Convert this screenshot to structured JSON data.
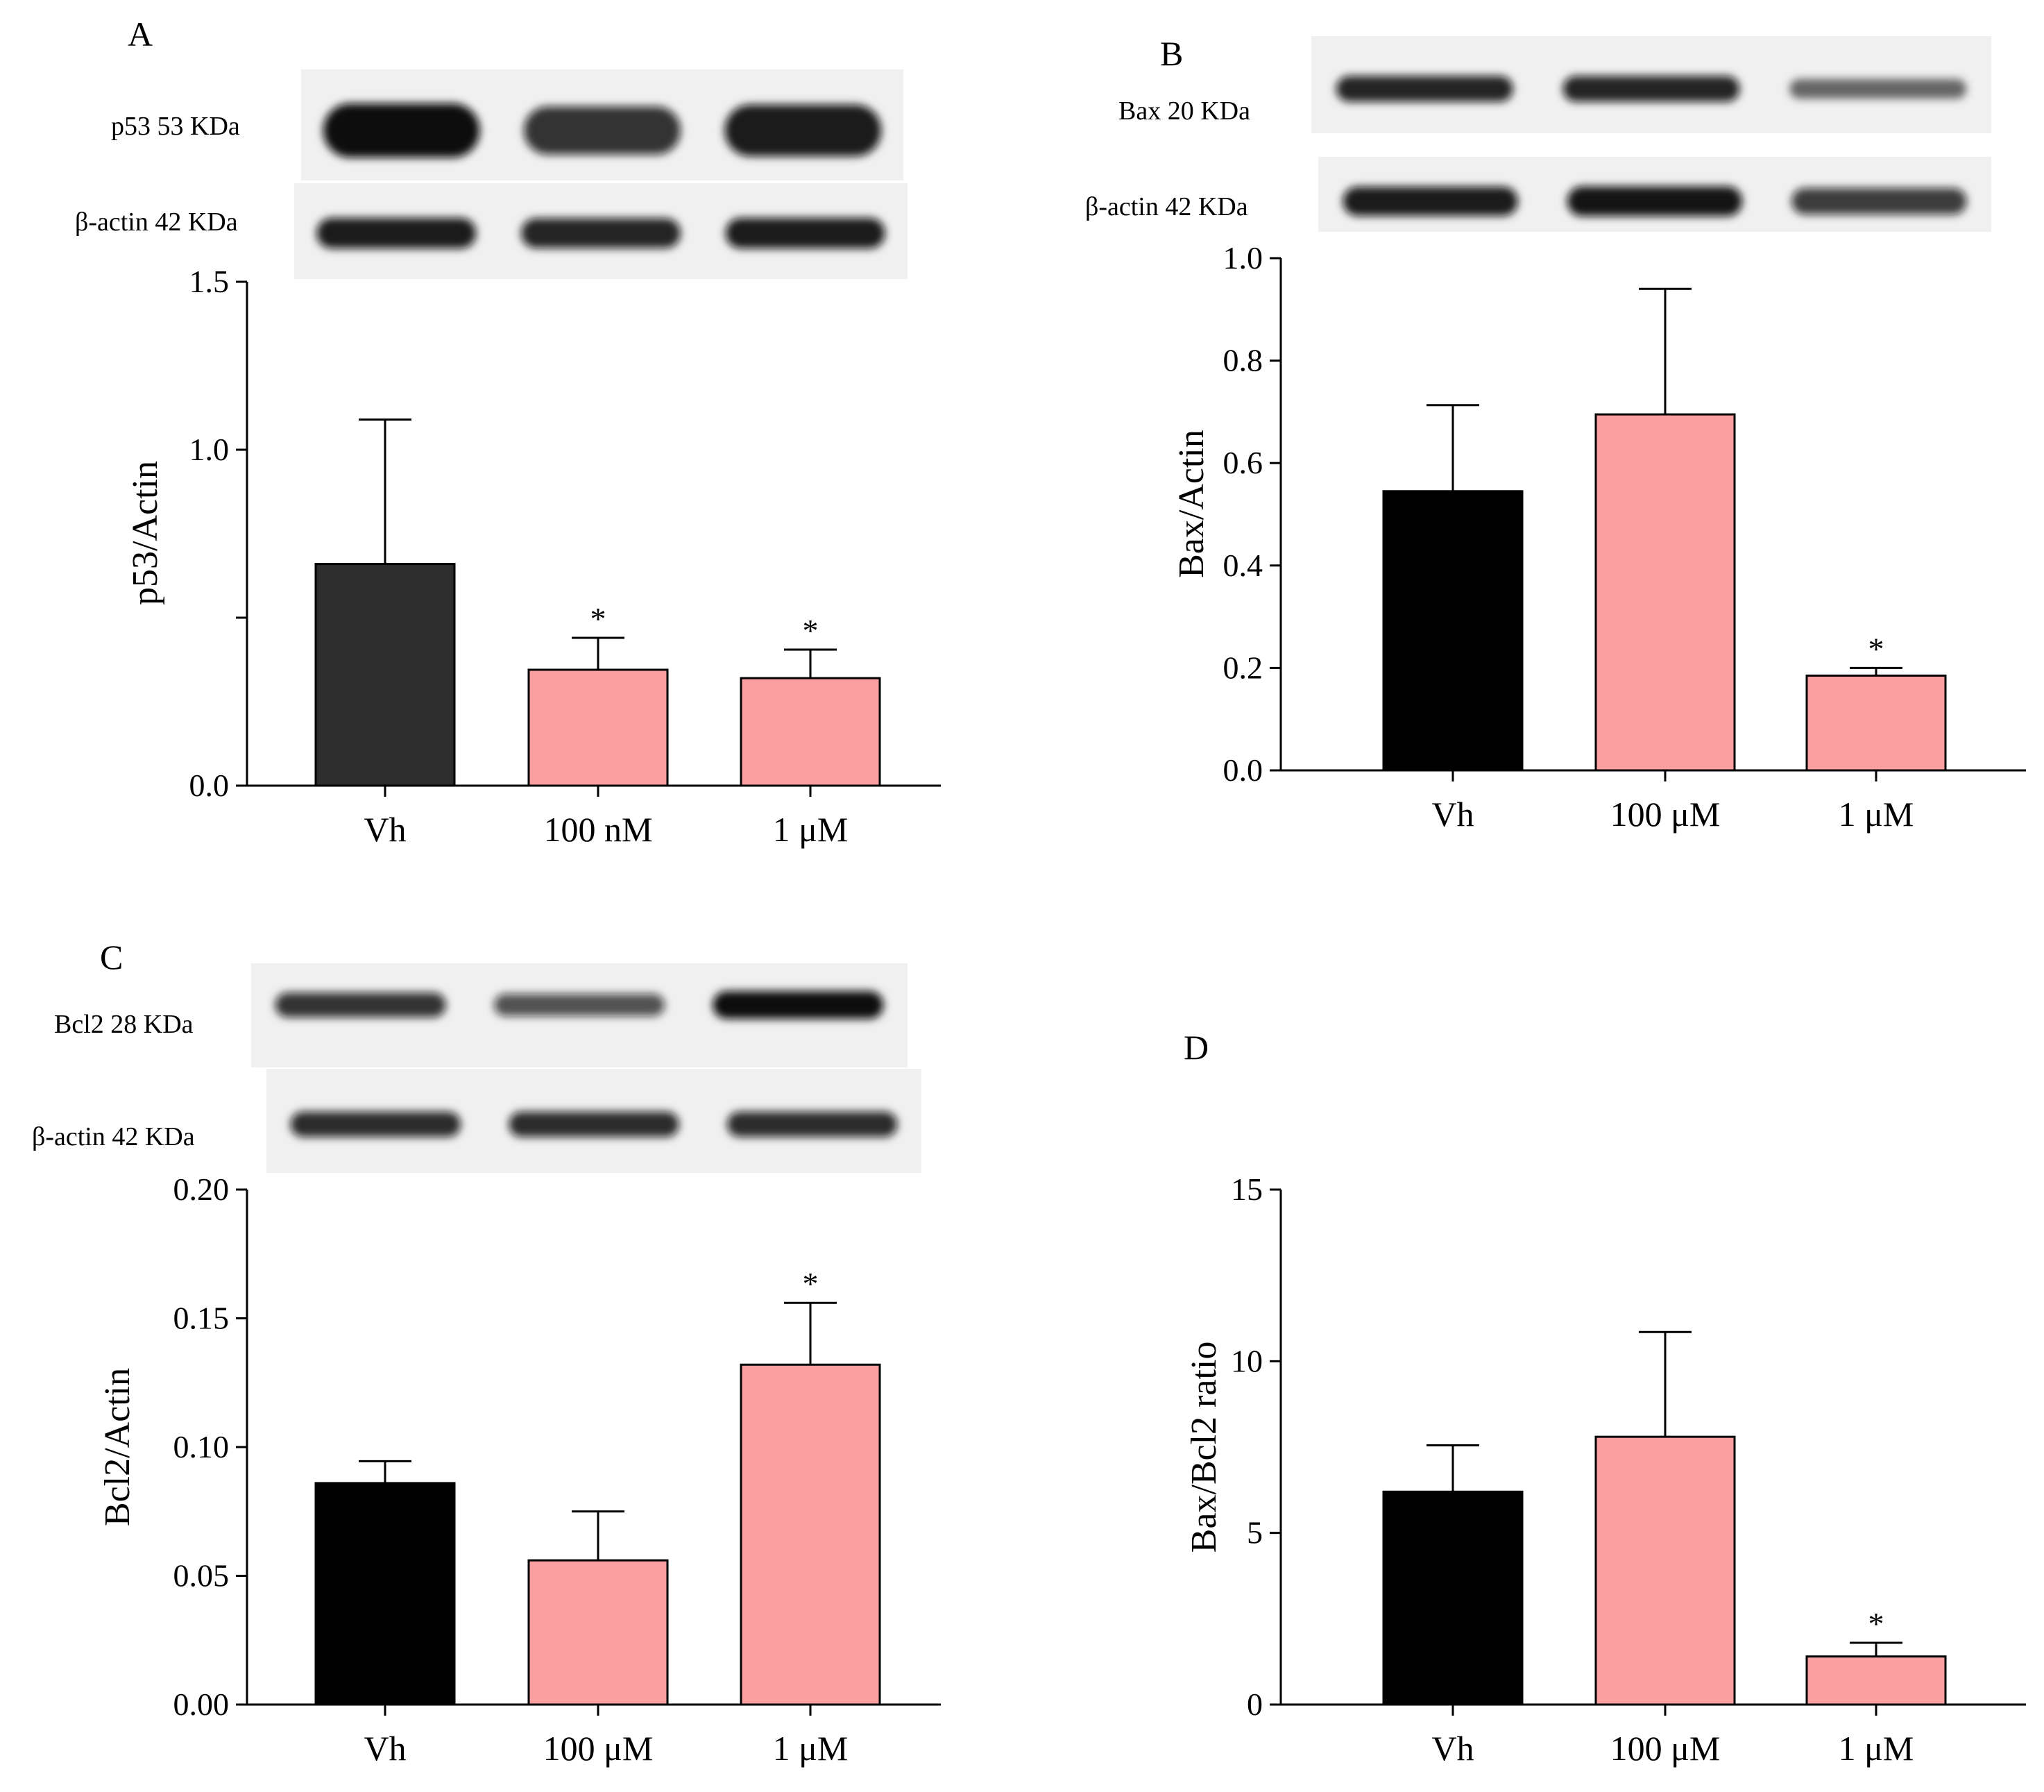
{
  "colors": {
    "vehicle_a": "#2d2d2d",
    "vehicle": "#000000",
    "treatment": "#fba0a0",
    "axis": "#000000",
    "blot_bg": "#f0f0f0",
    "band": "#0a0a0a"
  },
  "panels": [
    {
      "letter": "A",
      "blots": [
        {
          "label": "p53 53 KDa",
          "intensity": [
            1.0,
            0.75,
            0.9
          ]
        },
        {
          "label": "β-actin 42 KDa",
          "intensity": [
            0.9,
            0.85,
            0.9
          ]
        }
      ]
    },
    {
      "letter": "B",
      "blots": [
        {
          "label": "Bax 20 KDa",
          "intensity": [
            0.85,
            0.85,
            0.35
          ]
        },
        {
          "label": "β-actin 42 KDa",
          "intensity": [
            0.9,
            0.95,
            0.7
          ]
        }
      ]
    },
    {
      "letter": "C",
      "blots": [
        {
          "label": "Bcl2 28 KDa",
          "intensity": [
            0.75,
            0.55,
            1.0
          ]
        },
        {
          "label": "β-actin 42 KDa",
          "intensity": [
            0.8,
            0.8,
            0.8
          ]
        }
      ]
    },
    {
      "letter": "D",
      "blots": []
    }
  ],
  "chart_data": [
    {
      "type": "bar",
      "panel": "A",
      "categories": [
        "Vh",
        "100 nM",
        "1 μM"
      ],
      "values": [
        0.66,
        0.345,
        0.32
      ],
      "errors": [
        0.43,
        0.095,
        0.085
      ],
      "significance": [
        "",
        "*",
        "*"
      ],
      "ylabel": "p53/Actin",
      "xlabel": "",
      "ylim": [
        0,
        1.5
      ],
      "yticks": [
        0.0,
        0.5,
        1.0,
        1.5
      ],
      "ytick_labels": [
        "0.0",
        "",
        "1.0",
        "1.5"
      ]
    },
    {
      "type": "bar",
      "panel": "B",
      "categories": [
        "Vh",
        "100 μM",
        "1 μM"
      ],
      "values": [
        0.545,
        0.695,
        0.185
      ],
      "errors": [
        0.168,
        0.245,
        0.015
      ],
      "significance": [
        "",
        "",
        "*"
      ],
      "ylabel": "Bax/Actin",
      "xlabel": "",
      "ylim": [
        0,
        1.0
      ],
      "yticks": [
        0.0,
        0.2,
        0.4,
        0.6,
        0.8,
        1.0
      ],
      "ytick_labels": [
        "0.0",
        "0.2",
        "0.4",
        "0.6",
        "0.8",
        "1.0"
      ]
    },
    {
      "type": "bar",
      "panel": "C",
      "categories": [
        "Vh",
        "100 μM",
        "1 μM"
      ],
      "values": [
        0.086,
        0.056,
        0.132
      ],
      "errors": [
        0.0085,
        0.019,
        0.024
      ],
      "significance": [
        "",
        "",
        "*"
      ],
      "ylabel": "Bcl2/Actin",
      "xlabel": "",
      "ylim": [
        0,
        0.2
      ],
      "yticks": [
        0.0,
        0.05,
        0.1,
        0.15,
        0.2
      ],
      "ytick_labels": [
        "0.00",
        "0.05",
        "0.10",
        "0.15",
        "0.20"
      ]
    },
    {
      "type": "bar",
      "panel": "D",
      "categories": [
        "Vh",
        "100 μM",
        "1 μM"
      ],
      "values": [
        6.2,
        7.8,
        1.4
      ],
      "errors": [
        1.35,
        3.05,
        0.4
      ],
      "significance": [
        "",
        "",
        "*"
      ],
      "ylabel": "Bax/Bcl2 ratio",
      "xlabel": "",
      "ylim": [
        0,
        15
      ],
      "yticks": [
        0,
        5,
        10,
        15
      ],
      "ytick_labels": [
        "0",
        "5",
        "10",
        "15"
      ]
    }
  ]
}
